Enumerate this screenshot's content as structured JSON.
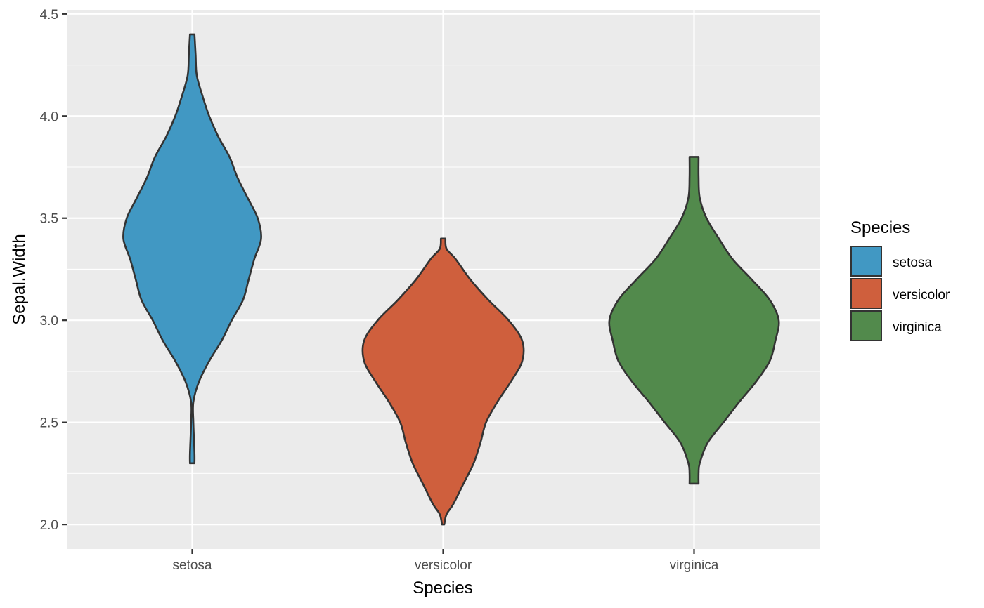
{
  "chart_data": {
    "type": "violin",
    "xlabel": "Species",
    "ylabel": "Sepal.Width",
    "categories": [
      "setosa",
      "versicolor",
      "virginica"
    ],
    "ylim": [
      1.88,
      4.52
    ],
    "y_ticks": [
      2.0,
      2.5,
      3.0,
      3.5,
      4.0,
      4.5
    ],
    "y_tick_labels": [
      "2.0",
      "2.5",
      "3.0",
      "3.5",
      "4.0",
      "4.5"
    ],
    "grid": true,
    "legend": {
      "title": "Species",
      "position": "right",
      "entries": [
        "setosa",
        "versicolor",
        "virginica"
      ]
    },
    "colors": {
      "setosa": "#4198c3",
      "versicolor": "#cf5f3d",
      "virginica": "#528a4c",
      "panel_background": "#ebebeb",
      "grid": "#ffffff",
      "outline": "#333333"
    },
    "series": [
      {
        "name": "setosa",
        "min": 2.3,
        "max": 4.4,
        "density_profile": [
          [
            2.3,
            0.02
          ],
          [
            2.35,
            0.02
          ],
          [
            2.5,
            0.01
          ],
          [
            2.6,
            0.01
          ],
          [
            2.7,
            0.06
          ],
          [
            2.8,
            0.15
          ],
          [
            2.9,
            0.26
          ],
          [
            3.0,
            0.35
          ],
          [
            3.1,
            0.45
          ],
          [
            3.2,
            0.5
          ],
          [
            3.3,
            0.55
          ],
          [
            3.4,
            0.61
          ],
          [
            3.5,
            0.58
          ],
          [
            3.6,
            0.49
          ],
          [
            3.7,
            0.4
          ],
          [
            3.8,
            0.33
          ],
          [
            3.9,
            0.23
          ],
          [
            4.0,
            0.15
          ],
          [
            4.1,
            0.09
          ],
          [
            4.2,
            0.04
          ],
          [
            4.3,
            0.03
          ],
          [
            4.4,
            0.02
          ]
        ]
      },
      {
        "name": "versicolor",
        "min": 2.0,
        "max": 3.4,
        "density_profile": [
          [
            2.0,
            0.01
          ],
          [
            2.05,
            0.03
          ],
          [
            2.1,
            0.09
          ],
          [
            2.2,
            0.18
          ],
          [
            2.3,
            0.27
          ],
          [
            2.4,
            0.33
          ],
          [
            2.5,
            0.38
          ],
          [
            2.6,
            0.48
          ],
          [
            2.7,
            0.6
          ],
          [
            2.8,
            0.7
          ],
          [
            2.9,
            0.7
          ],
          [
            3.0,
            0.58
          ],
          [
            3.1,
            0.4
          ],
          [
            3.2,
            0.24
          ],
          [
            3.3,
            0.11
          ],
          [
            3.35,
            0.03
          ],
          [
            3.4,
            0.02
          ]
        ]
      },
      {
        "name": "virginica",
        "min": 2.2,
        "max": 3.8,
        "density_profile": [
          [
            2.2,
            0.04
          ],
          [
            2.25,
            0.04
          ],
          [
            2.3,
            0.05
          ],
          [
            2.4,
            0.12
          ],
          [
            2.5,
            0.26
          ],
          [
            2.6,
            0.4
          ],
          [
            2.7,
            0.55
          ],
          [
            2.8,
            0.67
          ],
          [
            2.9,
            0.72
          ],
          [
            3.0,
            0.75
          ],
          [
            3.1,
            0.67
          ],
          [
            3.2,
            0.51
          ],
          [
            3.3,
            0.34
          ],
          [
            3.4,
            0.22
          ],
          [
            3.5,
            0.11
          ],
          [
            3.6,
            0.05
          ],
          [
            3.7,
            0.04
          ],
          [
            3.8,
            0.04
          ]
        ]
      }
    ]
  }
}
